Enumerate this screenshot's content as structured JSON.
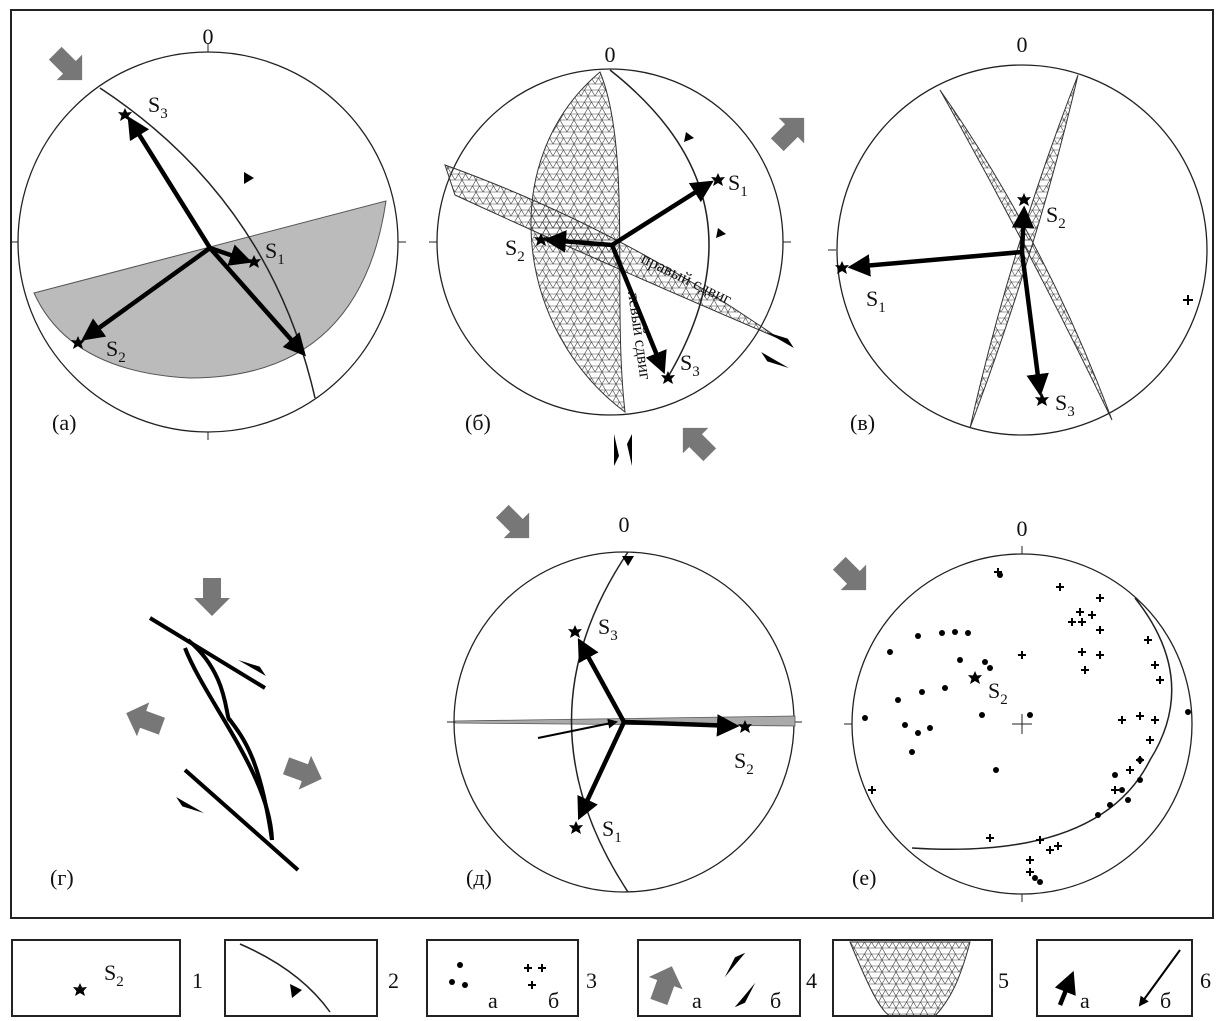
{
  "panels": [
    {
      "north": "0",
      "label": "(а)",
      "stresses": [
        {
          "symbol": "S",
          "index": "3"
        },
        {
          "symbol": "S",
          "index": "1"
        },
        {
          "symbol": "S",
          "index": "2"
        }
      ]
    },
    {
      "north": "0",
      "label": "(б)",
      "stresses": [
        {
          "symbol": "S",
          "index": "1"
        },
        {
          "symbol": "S",
          "index": "2"
        },
        {
          "symbol": "S",
          "index": "3"
        }
      ],
      "annotations": [
        "правый сдвиг",
        "левый сдвиг"
      ]
    },
    {
      "north": "0",
      "label": "(в)",
      "stresses": [
        {
          "symbol": "S",
          "index": "2"
        },
        {
          "symbol": "S",
          "index": "1"
        },
        {
          "symbol": "S",
          "index": "3"
        }
      ]
    },
    {
      "label": "(г)"
    },
    {
      "north": "0",
      "label": "(д)",
      "stresses": [
        {
          "symbol": "S",
          "index": "3"
        },
        {
          "symbol": "S",
          "index": "2"
        },
        {
          "symbol": "S",
          "index": "1"
        }
      ]
    },
    {
      "north": "0",
      "label": "(е)",
      "stresses": [
        {
          "symbol": "S",
          "index": "2"
        }
      ]
    }
  ],
  "legend": [
    {
      "symbol": "S",
      "index": "2",
      "number": "1"
    },
    {
      "number": "2"
    },
    {
      "items": [
        "а",
        "б"
      ],
      "number": "3"
    },
    {
      "items": [
        "а",
        "б"
      ],
      "number": "4"
    },
    {
      "number": "5"
    },
    {
      "items": [
        "а",
        "б"
      ],
      "number": "6"
    }
  ]
}
